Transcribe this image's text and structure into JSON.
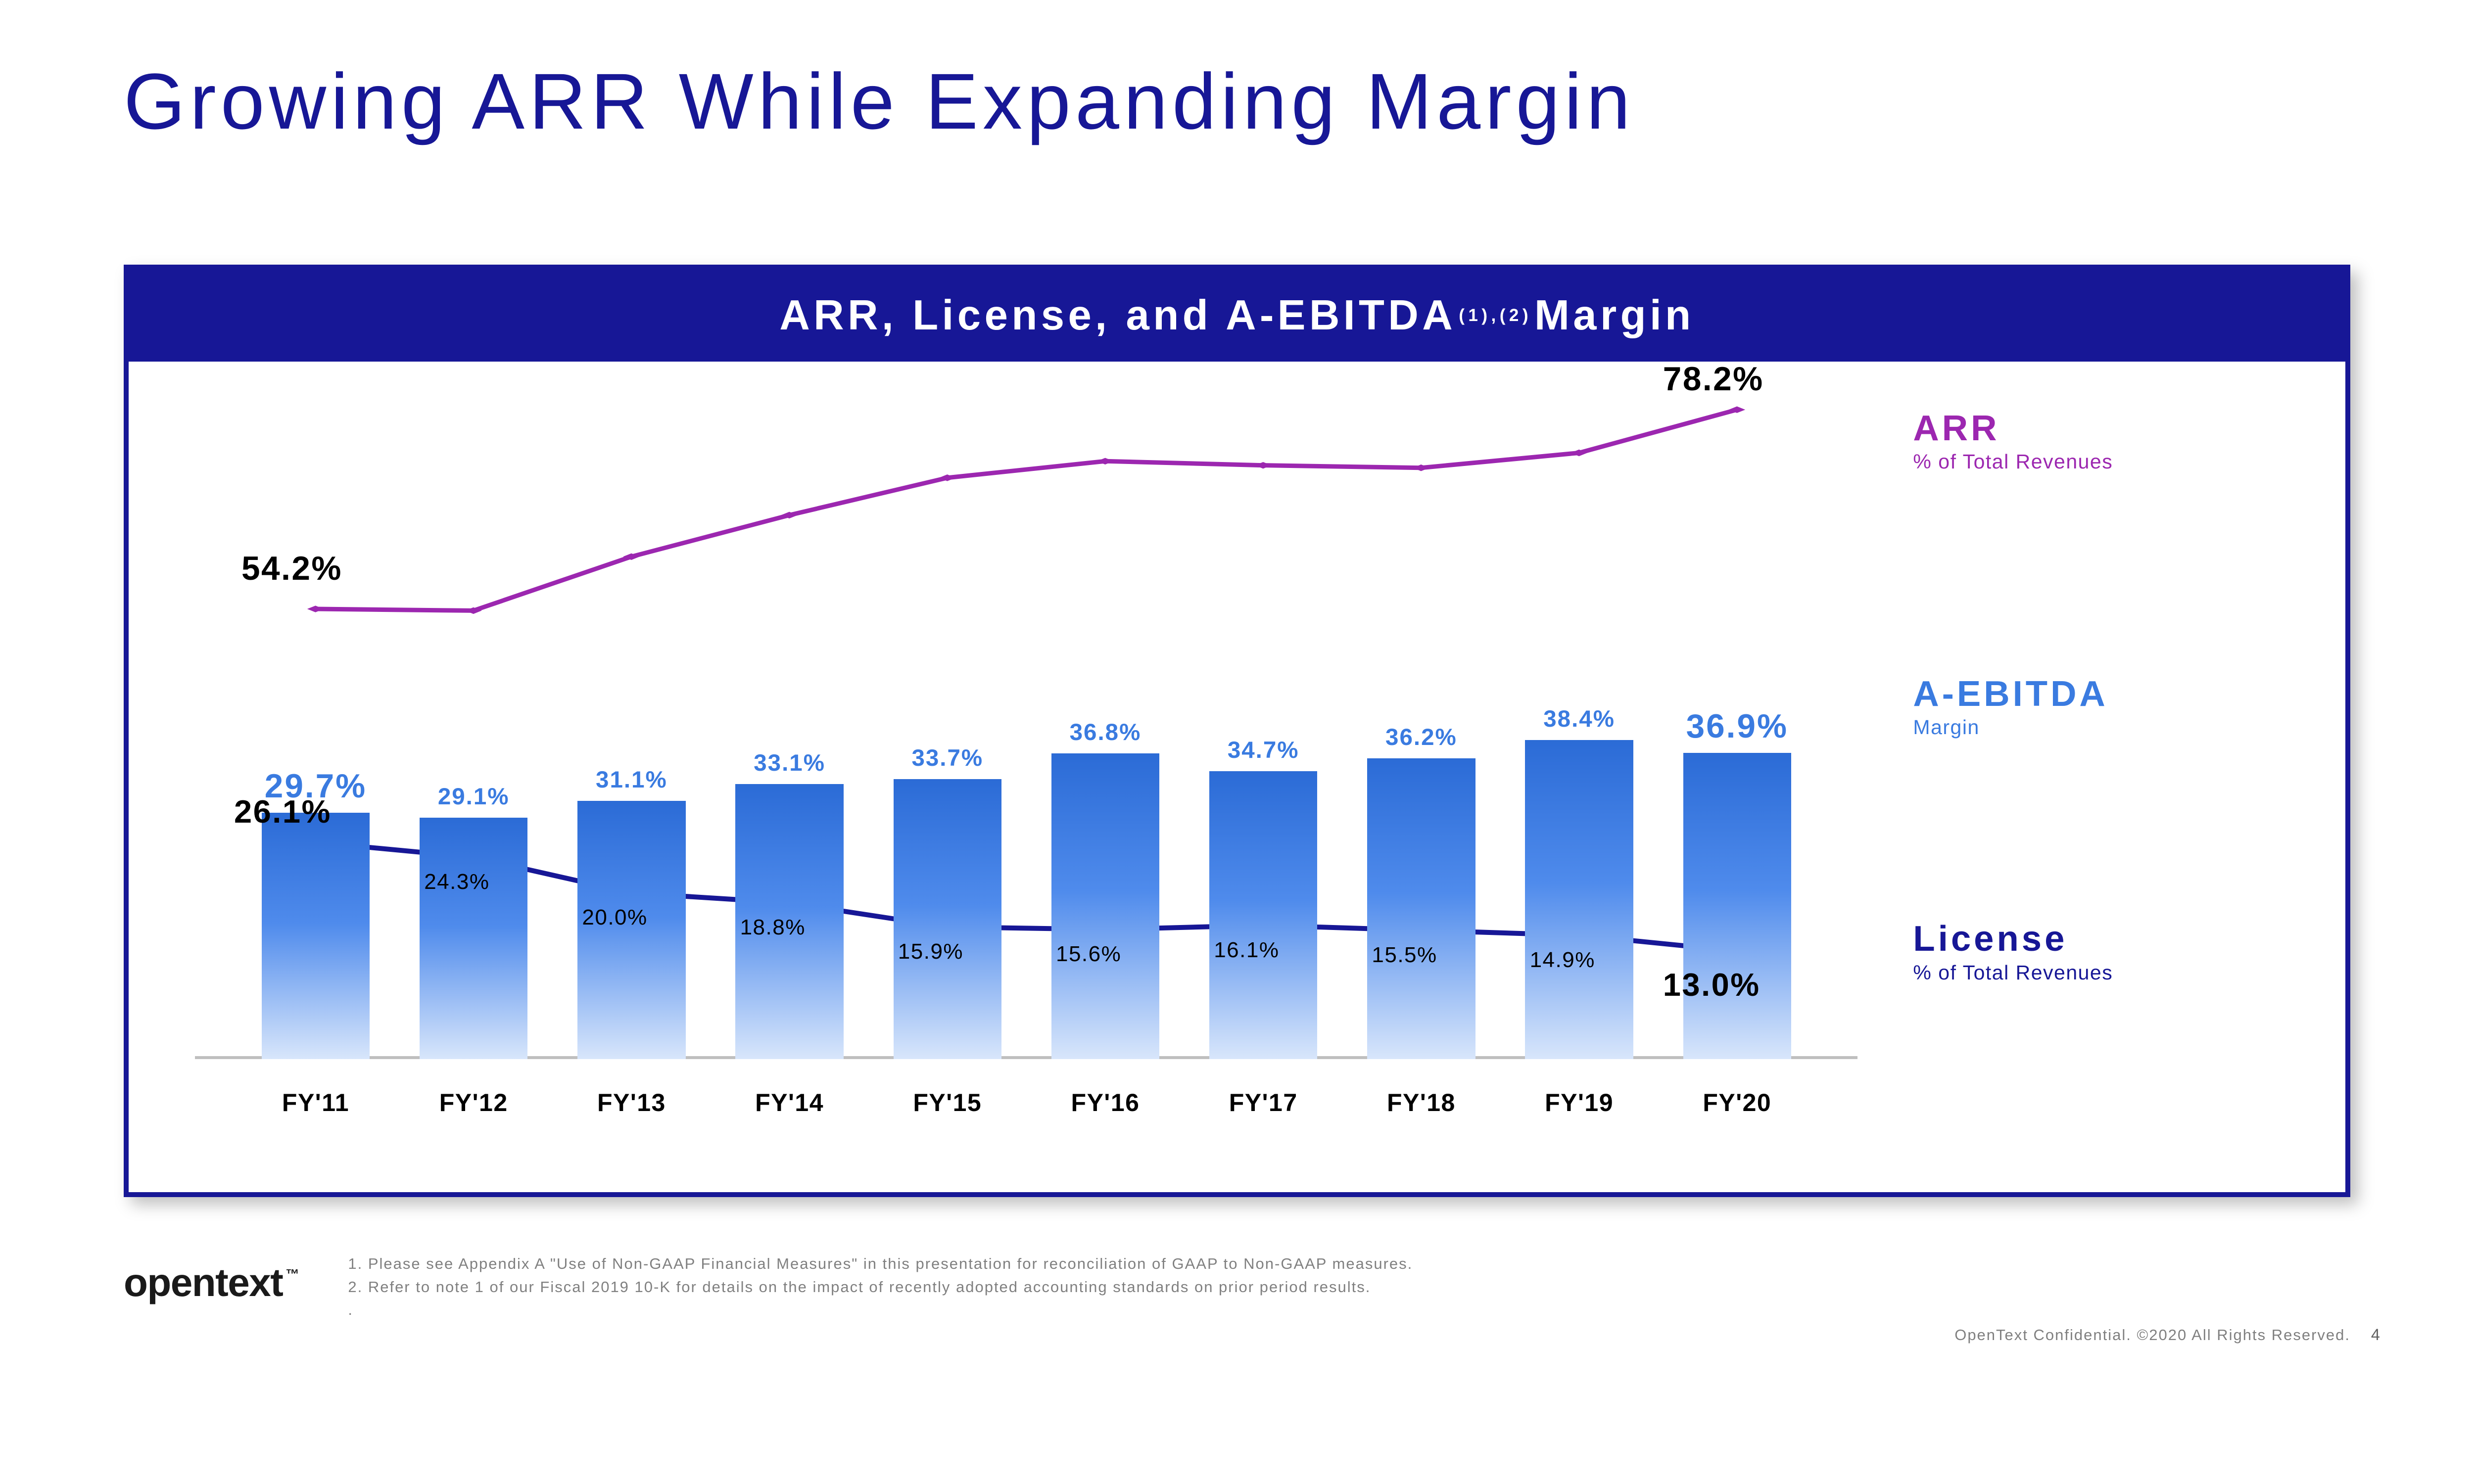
{
  "slide": {
    "title": "Growing ARR While Expanding Margin",
    "chart_title_pre": "ARR, License, and A-EBITDA",
    "chart_title_sup": "(1),(2)",
    "chart_title_post": " Margin",
    "page_number": "4"
  },
  "colors": {
    "brand_navy": "#171796",
    "arr_line": "#9c27b0",
    "license_line": "#171796",
    "aebitda_bar_top": "#2b6bd6",
    "aebitda_bar_mid": "#4f8bec",
    "aebitda_bar_bottom": "#d8e6fb",
    "aebitda_label": "#3a7be0",
    "axis_gray": "#bfbfbf",
    "footnote_gray": "#808080"
  },
  "chart": {
    "type": "bar_with_lines",
    "categories": [
      "FY'11",
      "FY'12",
      "FY'13",
      "FY'14",
      "FY'15",
      "FY'16",
      "FY'17",
      "FY'18",
      "FY'19",
      "FY'20"
    ],
    "ylim": [
      0,
      80
    ],
    "bar_width_pct": 6.5,
    "bar_gap_pct": 3.0,
    "series": {
      "aebitda_margin": {
        "label": "A-EBITDA",
        "sublabel": "Margin",
        "values": [
          29.7,
          29.1,
          31.1,
          33.1,
          33.7,
          36.8,
          34.7,
          36.2,
          38.4,
          36.9
        ],
        "value_labels": [
          "29.7%",
          "29.1%",
          "31.1%",
          "33.1%",
          "33.7%",
          "36.8%",
          "34.7%",
          "36.2%",
          "38.4%",
          "36.9%"
        ],
        "big_label_indices": [
          0,
          9
        ],
        "color": "#3a7be0"
      },
      "arr_pct": {
        "label": "ARR",
        "sublabel": "% of Total Revenues",
        "values": [
          54.2,
          54.0,
          60.5,
          65.5,
          70.0,
          72.0,
          71.5,
          71.2,
          73.0,
          78.2
        ],
        "value_labels": [
          "54.2%",
          "",
          "",
          "",
          "",
          "",
          "",
          "",
          "",
          "78.2%"
        ],
        "big_label_indices": [
          0,
          9
        ],
        "color": "#9c27b0",
        "line_width": 0.18,
        "marker": "diamond",
        "marker_size": 0.5
      },
      "license_pct": {
        "label": "License",
        "sublabel": "% of Total Revenues",
        "values": [
          26.1,
          24.3,
          20.0,
          18.8,
          15.9,
          15.6,
          16.1,
          15.5,
          14.9,
          13.0
        ],
        "value_labels": [
          "26.1%",
          "24.3%",
          "20.0%",
          "18.8%",
          "15.9%",
          "15.6%",
          "16.1%",
          "15.5%",
          "14.9%",
          "13.0%"
        ],
        "big_label_indices": [
          0,
          9
        ],
        "color": "#171796",
        "line_width": 0.2,
        "marker": "diamond",
        "marker_size": 0.5
      }
    },
    "legend": {
      "arr": {
        "top_pct": 2,
        "color": "#9c27b0"
      },
      "aebitda": {
        "top_pct": 41,
        "color": "#3a7be0"
      },
      "license": {
        "top_pct": 77,
        "color": "#171796"
      }
    }
  },
  "footer": {
    "logo": "opentext",
    "tm": "™",
    "footnote1": "1.   Please see Appendix A \"Use of Non-GAAP Financial Measures\" in this presentation for reconciliation of GAAP to Non-GAAP measures.",
    "footnote2": "2.   Refer to note 1 of our Fiscal 2019 10-K for details on the impact of recently adopted accounting standards on prior period results.",
    "footnote3": ".",
    "copyright": "OpenText Confidential. ©2020 All Rights Reserved."
  }
}
